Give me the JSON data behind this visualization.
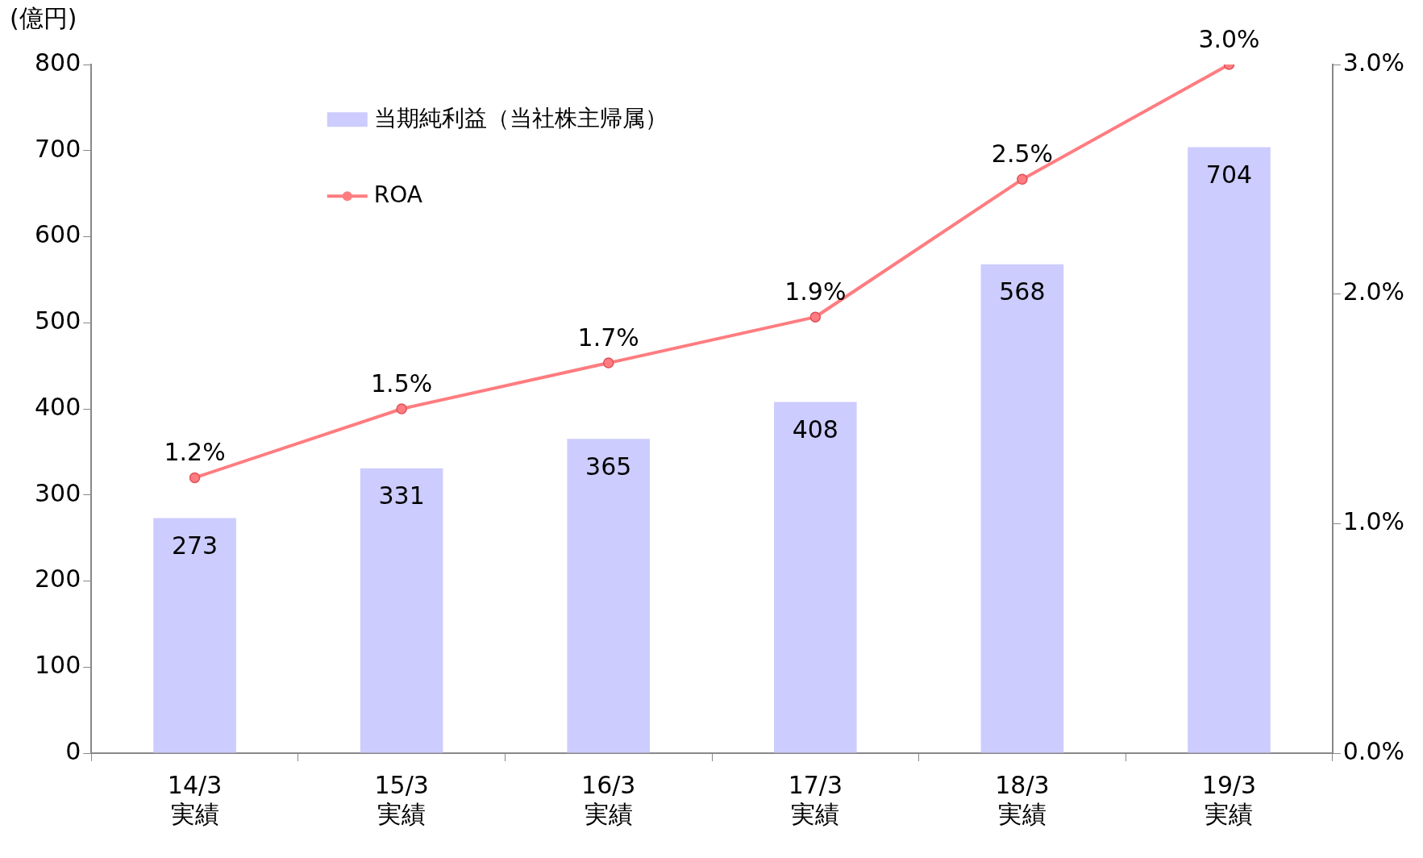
{
  "chart_data": {
    "type": "bar",
    "ylabel": "(億円)",
    "categories": [
      "14/3\n実績",
      "15/3\n実績",
      "16/3\n実績",
      "17/3\n実績",
      "18/3\n実績",
      "19/3\n実績"
    ],
    "series": [
      {
        "name": "当期純利益（当社株主帰属）",
        "color": "#ccccff",
        "values": [
          273,
          331,
          365,
          408,
          568,
          704
        ],
        "value_labels": [
          "273",
          "331",
          "365",
          "408",
          "568",
          "704"
        ]
      },
      {
        "name": "ROA",
        "type": "line",
        "axis": "y2",
        "color": "#ff7c80",
        "marker": "circle",
        "values": [
          1.2,
          1.5,
          1.7,
          1.9,
          2.5,
          3.0
        ],
        "value_labels": [
          "1.2%",
          "1.5%",
          "1.7%",
          "1.9%",
          "2.5%",
          "3.0%"
        ]
      }
    ],
    "ylim": [
      0,
      800
    ],
    "yticks": [
      0,
      100,
      200,
      300,
      400,
      500,
      600,
      700,
      800
    ],
    "y2lim": [
      0,
      3
    ],
    "y2ticks": [
      {
        "value": 0,
        "label": "0.0%"
      },
      {
        "value": 1,
        "label": "1.0%"
      },
      {
        "value": 2,
        "label": "2.0%"
      },
      {
        "value": 3,
        "label": "3.0%"
      }
    ],
    "grid": false,
    "legend": "top left"
  }
}
